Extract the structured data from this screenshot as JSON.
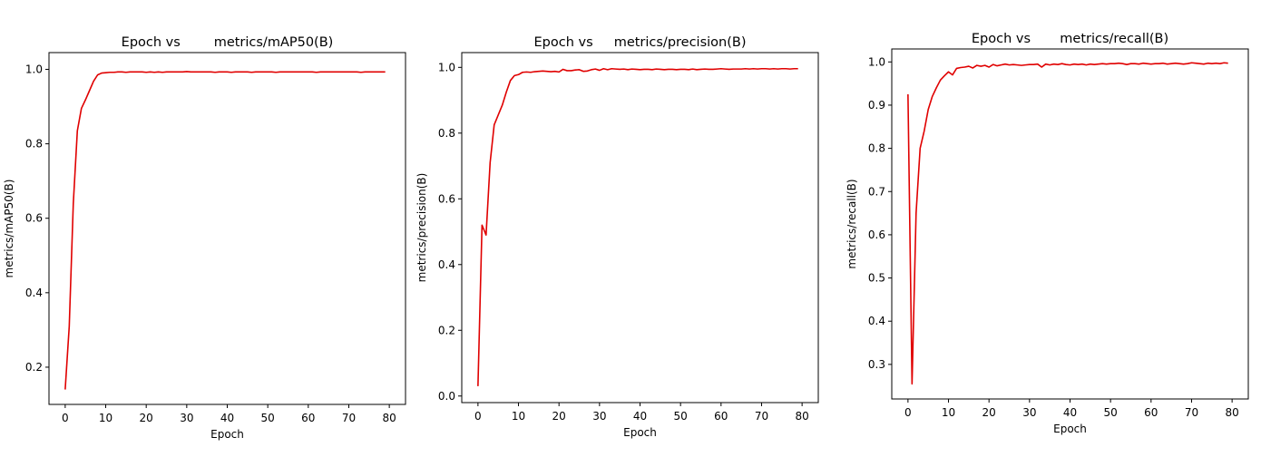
{
  "chart_data": [
    {
      "type": "line",
      "title": "Epoch vs        metrics/mAP50(B)",
      "xlabel": "Epoch",
      "ylabel": "metrics/mAP50(B)",
      "xlim": [
        -4,
        84
      ],
      "ylim": [
        0.1,
        1.045
      ],
      "xticks": [
        0,
        10,
        20,
        30,
        40,
        50,
        60,
        70,
        80
      ],
      "yticks": [
        0.2,
        0.4,
        0.6,
        0.8,
        1.0
      ],
      "ytick_labels": [
        "0.2",
        "0.4",
        "0.6",
        "0.8",
        "1.0"
      ],
      "grid": false,
      "color": "#e00000",
      "series": [
        {
          "x": [
            0,
            1,
            2,
            3,
            4,
            5,
            6,
            7,
            8,
            9,
            10,
            11,
            12,
            13,
            14,
            15,
            16,
            17,
            18,
            19,
            20,
            21,
            22,
            23,
            24,
            25,
            26,
            27,
            28,
            29,
            30,
            31,
            32,
            33,
            34,
            35,
            36,
            37,
            38,
            39,
            40,
            41,
            42,
            43,
            44,
            45,
            46,
            47,
            48,
            49,
            50,
            51,
            52,
            53,
            54,
            55,
            56,
            57,
            58,
            59,
            60,
            61,
            62,
            63,
            64,
            65,
            66,
            67,
            68,
            69,
            70,
            71,
            72,
            73,
            74,
            75,
            76,
            77,
            78,
            79
          ],
          "y": [
            0.14,
            0.31,
            0.64,
            0.835,
            0.895,
            0.918,
            0.943,
            0.968,
            0.985,
            0.99,
            0.991,
            0.992,
            0.992,
            0.993,
            0.993,
            0.992,
            0.993,
            0.993,
            0.993,
            0.993,
            0.992,
            0.993,
            0.992,
            0.993,
            0.992,
            0.993,
            0.993,
            0.993,
            0.993,
            0.993,
            0.994,
            0.993,
            0.993,
            0.993,
            0.993,
            0.993,
            0.993,
            0.992,
            0.993,
            0.993,
            0.993,
            0.992,
            0.993,
            0.993,
            0.993,
            0.993,
            0.992,
            0.993,
            0.993,
            0.993,
            0.993,
            0.993,
            0.992,
            0.993,
            0.993,
            0.993,
            0.993,
            0.993,
            0.993,
            0.993,
            0.993,
            0.993,
            0.992,
            0.993,
            0.993,
            0.993,
            0.993,
            0.993,
            0.993,
            0.993,
            0.993,
            0.993,
            0.993,
            0.992,
            0.993,
            0.993,
            0.993,
            0.993,
            0.993,
            0.993
          ]
        }
      ]
    },
    {
      "type": "line",
      "title": "Epoch vs     metrics/precision(B)",
      "xlabel": "Epoch",
      "ylabel": "metrics/precision(B)",
      "xlim": [
        -4,
        84
      ],
      "ylim": [
        -0.02,
        1.045
      ],
      "xticks": [
        0,
        10,
        20,
        30,
        40,
        50,
        60,
        70,
        80
      ],
      "yticks": [
        0.0,
        0.2,
        0.4,
        0.6,
        0.8,
        1.0
      ],
      "ytick_labels": [
        "0.0",
        "0.2",
        "0.4",
        "0.6",
        "0.8",
        "1.0"
      ],
      "grid": false,
      "color": "#e00000",
      "series": [
        {
          "x": [
            0,
            1,
            2,
            3,
            4,
            5,
            6,
            7,
            8,
            9,
            10,
            11,
            12,
            13,
            14,
            15,
            16,
            17,
            18,
            19,
            20,
            21,
            22,
            23,
            24,
            25,
            26,
            27,
            28,
            29,
            30,
            31,
            32,
            33,
            34,
            35,
            36,
            37,
            38,
            39,
            40,
            41,
            42,
            43,
            44,
            45,
            46,
            47,
            48,
            49,
            50,
            51,
            52,
            53,
            54,
            55,
            56,
            57,
            58,
            59,
            60,
            61,
            62,
            63,
            64,
            65,
            66,
            67,
            68,
            69,
            70,
            71,
            72,
            73,
            74,
            75,
            76,
            77,
            78,
            79
          ],
          "y": [
            0.03,
            0.52,
            0.49,
            0.71,
            0.825,
            0.855,
            0.885,
            0.925,
            0.96,
            0.975,
            0.978,
            0.985,
            0.986,
            0.985,
            0.987,
            0.988,
            0.989,
            0.988,
            0.987,
            0.988,
            0.986,
            0.994,
            0.99,
            0.99,
            0.992,
            0.993,
            0.988,
            0.989,
            0.993,
            0.995,
            0.991,
            0.996,
            0.993,
            0.996,
            0.995,
            0.994,
            0.995,
            0.993,
            0.995,
            0.994,
            0.993,
            0.994,
            0.994,
            0.993,
            0.995,
            0.994,
            0.993,
            0.994,
            0.994,
            0.993,
            0.994,
            0.994,
            0.993,
            0.995,
            0.993,
            0.994,
            0.995,
            0.994,
            0.994,
            0.995,
            0.996,
            0.995,
            0.994,
            0.995,
            0.995,
            0.995,
            0.996,
            0.995,
            0.996,
            0.995,
            0.996,
            0.996,
            0.995,
            0.996,
            0.995,
            0.996,
            0.996,
            0.995,
            0.996,
            0.996
          ]
        }
      ]
    },
    {
      "type": "line",
      "title": "Epoch vs       metrics/recall(B)",
      "xlabel": "Epoch",
      "ylabel": "metrics/recall(B)",
      "xlim": [
        -4,
        84
      ],
      "ylim": [
        0.22,
        1.03
      ],
      "xticks": [
        0,
        10,
        20,
        30,
        40,
        50,
        60,
        70,
        80
      ],
      "yticks": [
        0.3,
        0.4,
        0.5,
        0.6,
        0.7,
        0.8,
        0.9,
        1.0
      ],
      "ytick_labels": [
        "0.3",
        "0.4",
        "0.5",
        "0.6",
        "0.7",
        "0.8",
        "0.9",
        "1.0"
      ],
      "grid": false,
      "color": "#e00000",
      "series": [
        {
          "x": [
            0,
            1,
            2,
            3,
            4,
            5,
            6,
            7,
            8,
            9,
            10,
            11,
            12,
            13,
            14,
            15,
            16,
            17,
            18,
            19,
            20,
            21,
            22,
            23,
            24,
            25,
            26,
            27,
            28,
            29,
            30,
            31,
            32,
            33,
            34,
            35,
            36,
            37,
            38,
            39,
            40,
            41,
            42,
            43,
            44,
            45,
            46,
            47,
            48,
            49,
            50,
            51,
            52,
            53,
            54,
            55,
            56,
            57,
            58,
            59,
            60,
            61,
            62,
            63,
            64,
            65,
            66,
            67,
            68,
            69,
            70,
            71,
            72,
            73,
            74,
            75,
            76,
            77,
            78,
            79
          ],
          "y": [
            0.925,
            0.255,
            0.65,
            0.8,
            0.84,
            0.89,
            0.92,
            0.94,
            0.958,
            0.968,
            0.977,
            0.97,
            0.985,
            0.987,
            0.988,
            0.99,
            0.986,
            0.992,
            0.99,
            0.992,
            0.988,
            0.994,
            0.991,
            0.993,
            0.995,
            0.993,
            0.994,
            0.993,
            0.992,
            0.993,
            0.994,
            0.994,
            0.995,
            0.988,
            0.995,
            0.993,
            0.995,
            0.994,
            0.996,
            0.994,
            0.993,
            0.995,
            0.994,
            0.995,
            0.993,
            0.995,
            0.994,
            0.995,
            0.996,
            0.995,
            0.996,
            0.996,
            0.997,
            0.996,
            0.994,
            0.996,
            0.996,
            0.995,
            0.997,
            0.996,
            0.995,
            0.996,
            0.996,
            0.997,
            0.995,
            0.996,
            0.997,
            0.996,
            0.995,
            0.996,
            0.998,
            0.997,
            0.996,
            0.995,
            0.997,
            0.996,
            0.997,
            0.996,
            0.998,
            0.997
          ]
        }
      ]
    }
  ]
}
